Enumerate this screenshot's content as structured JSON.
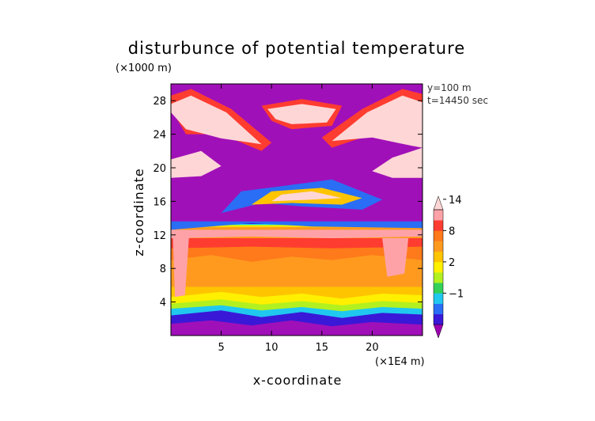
{
  "chart_data": {
    "type": "heatmap",
    "title": "disturbunce of potential temperature",
    "xlabel": "x-coordinate",
    "ylabel": "z-coordinate",
    "x_unit": "(×1E4 m)",
    "y_unit": "(×1000 m)",
    "xlim": [
      0,
      25
    ],
    "ylim": [
      0,
      30
    ],
    "xticks": [
      "5",
      "10",
      "15",
      "20"
    ],
    "xtick_values": [
      5,
      10,
      15,
      20
    ],
    "yticks": [
      "4",
      "8",
      "12",
      "16",
      "20",
      "24",
      "28"
    ],
    "ytick_values": [
      4,
      8,
      12,
      16,
      20,
      24,
      28
    ],
    "annotations": [
      "y=100 m",
      "t=14450 sec"
    ],
    "colorbar": {
      "labels": [
        "14",
        "8",
        "2",
        "−1"
      ],
      "label_values": [
        14,
        8,
        2,
        -1
      ],
      "levels": [
        -5,
        -3,
        -2,
        -1,
        0,
        1,
        2,
        4,
        6,
        8,
        10,
        12,
        14,
        16
      ],
      "colors": [
        "#9c00b0",
        "#3a18d8",
        "#2a6ef5",
        "#20c8f0",
        "#33d15a",
        "#b2f020",
        "#fff000",
        "#ffc400",
        "#ff9a1f",
        "#ff7a1a",
        "#ff3c30",
        "#ffa2a8",
        "#ffd6d6"
      ]
    },
    "background_color": "#a010b8",
    "gridlines": false,
    "legend_position": "right (colorbar)"
  }
}
